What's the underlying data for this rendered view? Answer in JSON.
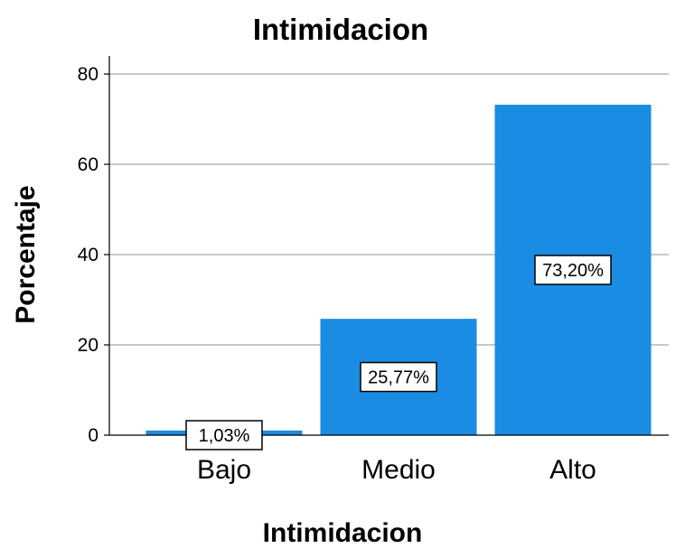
{
  "chart_data": {
    "type": "bar",
    "title": "Intimidacion",
    "xlabel": "Intimidacion",
    "ylabel": "Porcentaje",
    "categories": [
      "Bajo",
      "Medio",
      "Alto"
    ],
    "values": [
      1.03,
      25.77,
      73.2
    ],
    "data_labels": [
      "1,03%",
      "25,77%",
      "73,20%"
    ],
    "yticks": [
      0,
      20,
      40,
      60,
      80
    ],
    "ytick_labels": [
      "0",
      "20",
      "40",
      "60",
      "80"
    ],
    "ylim": [
      0,
      84
    ],
    "grid": true,
    "legend": "none",
    "bar_color": "#1a8ce3",
    "grid_color": "#c8c8c8"
  }
}
